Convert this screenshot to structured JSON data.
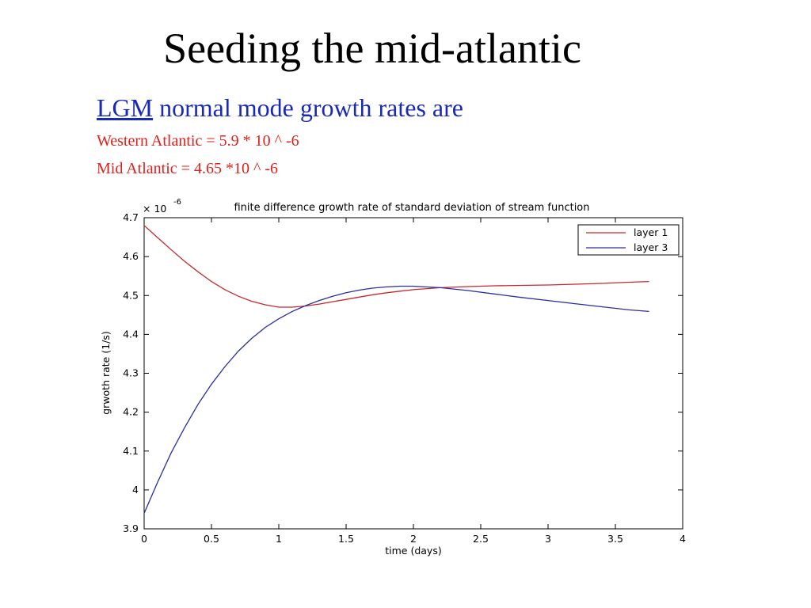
{
  "slide": {
    "title": "Seeding the mid-atlantic",
    "subtitle_link": "LGM",
    "subtitle_rest": " normal mode growth rates are",
    "line1": "Western Atlantic =  5.9 * 10 ^ -6",
    "line2": "Mid Atlantic = 4.65 *10 ^ -6"
  },
  "colors": {
    "layer1": "#c8282d",
    "layer3": "#2a2ea0",
    "subtitle": "#1a2ab8",
    "notes": "#e0201c"
  },
  "chart_data": {
    "type": "line",
    "title": "finite difference growth rate of standard deviation of stream function",
    "xlabel": "time (days)",
    "ylabel": "grwoth rate (1/s)",
    "y_multiplier": "× 10",
    "y_multiplier_exp": "-6",
    "xlim": [
      0,
      4
    ],
    "ylim": [
      3.9,
      4.7
    ],
    "xticks": [
      0,
      0.5,
      1,
      1.5,
      2,
      2.5,
      3,
      3.5,
      4
    ],
    "xtick_labels": [
      "0",
      "0.5",
      "1",
      "1.5",
      "2",
      "2.5",
      "3",
      "3.5",
      "4"
    ],
    "yticks": [
      3.9,
      4.0,
      4.1,
      4.2,
      4.3,
      4.4,
      4.5,
      4.6,
      4.7
    ],
    "ytick_labels": [
      "3.9",
      "4",
      "4.1",
      "4.2",
      "4.3",
      "4.4",
      "4.5",
      "4.6",
      "4.7"
    ],
    "grid": false,
    "legend_position": "top-right",
    "series": [
      {
        "name": "layer 1",
        "x": [
          0,
          0.1,
          0.2,
          0.3,
          0.4,
          0.5,
          0.6,
          0.7,
          0.8,
          0.9,
          1.0,
          1.1,
          1.2,
          1.3,
          1.4,
          1.5,
          1.6,
          1.7,
          1.8,
          1.9,
          2.0,
          2.2,
          2.4,
          2.6,
          2.8,
          3.0,
          3.2,
          3.4,
          3.6,
          3.75
        ],
        "y": [
          4.68,
          4.649,
          4.618,
          4.588,
          4.561,
          4.536,
          4.515,
          4.498,
          4.485,
          4.476,
          4.47,
          4.47,
          4.473,
          4.478,
          4.484,
          4.49,
          4.496,
          4.502,
          4.507,
          4.511,
          4.515,
          4.52,
          4.523,
          4.525,
          4.526,
          4.527,
          4.529,
          4.531,
          4.534,
          4.536
        ]
      },
      {
        "name": "layer 3",
        "x": [
          0,
          0.1,
          0.2,
          0.3,
          0.4,
          0.5,
          0.6,
          0.7,
          0.8,
          0.9,
          1.0,
          1.1,
          1.2,
          1.3,
          1.4,
          1.5,
          1.6,
          1.7,
          1.8,
          1.9,
          2.0,
          2.2,
          2.4,
          2.6,
          2.8,
          3.0,
          3.2,
          3.4,
          3.6,
          3.75
        ],
        "y": [
          3.94,
          4.02,
          4.095,
          4.16,
          4.22,
          4.272,
          4.317,
          4.357,
          4.39,
          4.418,
          4.44,
          4.459,
          4.474,
          4.487,
          4.498,
          4.507,
          4.514,
          4.519,
          4.522,
          4.524,
          4.524,
          4.52,
          4.513,
          4.504,
          4.495,
          4.487,
          4.479,
          4.471,
          4.463,
          4.459
        ]
      }
    ]
  }
}
